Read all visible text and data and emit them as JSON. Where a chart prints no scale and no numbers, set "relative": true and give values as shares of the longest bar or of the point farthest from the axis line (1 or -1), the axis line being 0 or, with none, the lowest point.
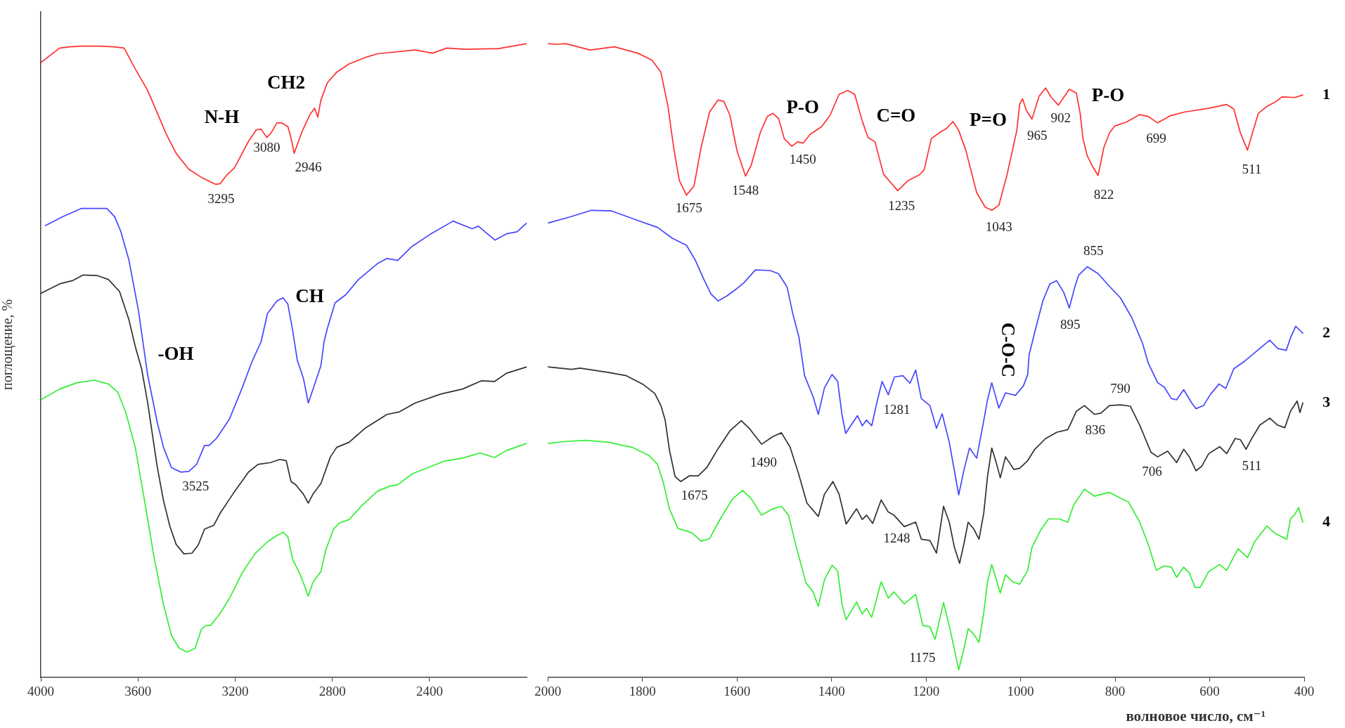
{
  "chart_data": [
    {
      "type": "line",
      "relative": true,
      "ylabel": "поглощение, %",
      "xlim": [
        4000,
        2000
      ],
      "xticks": [
        4000,
        3600,
        3200,
        2800,
        2400
      ],
      "grid": false,
      "legend": false,
      "marker": "none",
      "line_style": "solid",
      "series": [
        {
          "color": "#ff3030",
          "x": [
            4000,
            3922,
            3880,
            3832,
            3760,
            3700,
            3657,
            3611,
            3560,
            3521,
            3482,
            3443,
            3391,
            3339,
            3281,
            3262,
            3236,
            3203,
            3171,
            3145,
            3113,
            3093,
            3070,
            3054,
            3028,
            3009,
            2983,
            2970,
            2957,
            2944,
            2925,
            2892,
            2873,
            2860,
            2847,
            2821,
            2782,
            2731,
            2666,
            2614,
            2459,
            2387,
            2329,
            2253,
            2148,
            2119,
            2046,
            2000
          ],
          "values": [
            0.97,
            0.993,
            0.995,
            0.996,
            0.996,
            0.995,
            0.993,
            0.96,
            0.926,
            0.891,
            0.856,
            0.827,
            0.802,
            0.789,
            0.778,
            0.779,
            0.792,
            0.804,
            0.827,
            0.846,
            0.864,
            0.865,
            0.852,
            0.858,
            0.875,
            0.875,
            0.869,
            0.851,
            0.827,
            0.841,
            0.861,
            0.888,
            0.898,
            0.884,
            0.911,
            0.938,
            0.955,
            0.968,
            0.978,
            0.984,
            0.99,
            0.985,
            0.993,
            0.991,
            0.992,
            0.992,
            0.997,
            1.0
          ]
        },
        {
          "color": "#4646ff",
          "x": [
            3981,
            3909,
            3832,
            3728,
            3696,
            3670,
            3637,
            3598,
            3560,
            3521,
            3495,
            3462,
            3424,
            3391,
            3359,
            3326,
            3307,
            3275,
            3223,
            3171,
            3132,
            3093,
            3067,
            3028,
            3003,
            2983,
            2964,
            2944,
            2919,
            2899,
            2873,
            2847,
            2834,
            2821,
            2789,
            2744,
            2692,
            2614,
            2575,
            2531,
            2472,
            2394,
            2303,
            2225,
            2199,
            2131,
            2083,
            2040,
            2000
          ],
          "values": [
            0.713,
            0.727,
            0.74,
            0.74,
            0.727,
            0.703,
            0.658,
            0.579,
            0.477,
            0.403,
            0.363,
            0.331,
            0.324,
            0.325,
            0.336,
            0.366,
            0.366,
            0.378,
            0.408,
            0.457,
            0.497,
            0.53,
            0.574,
            0.594,
            0.599,
            0.589,
            0.549,
            0.5,
            0.472,
            0.433,
            0.462,
            0.492,
            0.53,
            0.55,
            0.591,
            0.604,
            0.628,
            0.653,
            0.661,
            0.658,
            0.68,
            0.7,
            0.72,
            0.708,
            0.712,
            0.69,
            0.7,
            0.703,
            0.717
          ]
        },
        {
          "color": "#303030",
          "x": [
            4000,
            3922,
            3870,
            3825,
            3767,
            3722,
            3676,
            3637,
            3611,
            3585,
            3560,
            3521,
            3495,
            3469,
            3443,
            3411,
            3378,
            3352,
            3326,
            3288,
            3262,
            3210,
            3145,
            3106,
            3054,
            3016,
            2990,
            2970,
            2951,
            2919,
            2899,
            2880,
            2847,
            2808,
            2782,
            2731,
            2666,
            2575,
            2524,
            2459,
            2355,
            2264,
            2187,
            2132,
            2083,
            2000
          ],
          "values": [
            0.606,
            0.621,
            0.626,
            0.635,
            0.634,
            0.628,
            0.609,
            0.564,
            0.522,
            0.487,
            0.433,
            0.333,
            0.279,
            0.239,
            0.21,
            0.195,
            0.196,
            0.209,
            0.234,
            0.24,
            0.259,
            0.289,
            0.324,
            0.336,
            0.339,
            0.344,
            0.342,
            0.309,
            0.304,
            0.289,
            0.275,
            0.289,
            0.306,
            0.348,
            0.363,
            0.371,
            0.393,
            0.415,
            0.419,
            0.433,
            0.447,
            0.455,
            0.468,
            0.467,
            0.48,
            0.49
          ]
        },
        {
          "color": "#33ee33",
          "x": [
            4000,
            3922,
            3851,
            3780,
            3722,
            3683,
            3650,
            3611,
            3573,
            3534,
            3495,
            3462,
            3430,
            3398,
            3365,
            3339,
            3320,
            3301,
            3262,
            3223,
            3171,
            3119,
            3067,
            3028,
            3003,
            2983,
            2964,
            2932,
            2915,
            2899,
            2880,
            2847,
            2828,
            2795,
            2769,
            2731,
            2679,
            2614,
            2562,
            2531,
            2472,
            2407,
            2342,
            2264,
            2192,
            2132,
            2083,
            2010,
            2000
          ],
          "values": [
            0.438,
            0.455,
            0.465,
            0.469,
            0.463,
            0.45,
            0.418,
            0.363,
            0.279,
            0.19,
            0.115,
            0.066,
            0.046,
            0.04,
            0.046,
            0.076,
            0.082,
            0.082,
            0.101,
            0.125,
            0.165,
            0.195,
            0.214,
            0.224,
            0.229,
            0.222,
            0.187,
            0.162,
            0.145,
            0.128,
            0.15,
            0.167,
            0.2,
            0.234,
            0.244,
            0.249,
            0.271,
            0.294,
            0.302,
            0.304,
            0.321,
            0.331,
            0.341,
            0.346,
            0.354,
            0.347,
            0.358,
            0.368,
            0.369
          ]
        }
      ],
      "annotations": [
        {
          "text": "N-H",
          "x": 3145,
          "y": 0.846
        },
        {
          "text": "CH2",
          "x": 2990,
          "y": 0.871
        },
        {
          "text": "3295",
          "x": 3258,
          "y": 0.781
        },
        {
          "text": "3080",
          "x": 3070,
          "y": 0.852
        },
        {
          "text": "2946",
          "x": 2957,
          "y": 0.827
        },
        {
          "text": "-OH",
          "x": 3560,
          "y": 0.477
        },
        {
          "text": "CH",
          "x": 3003,
          "y": 0.599
        },
        {
          "text": "3525",
          "x": 3363,
          "y": 0.335
        }
      ]
    },
    {
      "type": "line",
      "relative": true,
      "xlabel": "волновое число, см⁻¹",
      "xlim": [
        2000,
        400
      ],
      "xticks": [
        2000,
        1800,
        1600,
        1400,
        1200,
        1000,
        800,
        600,
        400
      ],
      "grid": false,
      "legend": false,
      "marker": "none",
      "line_style": "solid",
      "series": [
        {
          "name": "1",
          "color": "#ff3030",
          "x": [
            2000,
            1981,
            1962,
            1911,
            1859,
            1810,
            1780,
            1761,
            1746,
            1734,
            1722,
            1707,
            1691,
            1676,
            1658,
            1640,
            1628,
            1615,
            1600,
            1582,
            1570,
            1551,
            1536,
            1524,
            1512,
            1500,
            1484,
            1472,
            1460,
            1445,
            1421,
            1403,
            1384,
            1366,
            1351,
            1335,
            1323,
            1308,
            1290,
            1260,
            1238,
            1214,
            1204,
            1189,
            1169,
            1157,
            1143,
            1131,
            1116,
            1093,
            1075,
            1061,
            1046,
            1029,
            1008,
            1002,
            996,
            988,
            976,
            961,
            947,
            935,
            920,
            897,
            882,
            874,
            868,
            859,
            847,
            836,
            824,
            812,
            801,
            777,
            748,
            730,
            710,
            684,
            654,
            602,
            564,
            549,
            535,
            520,
            508,
            497,
            479,
            461,
            447,
            420,
            403
          ],
          "values": [
            1.0,
            0.999,
            1.0,
            0.99,
            0.995,
            0.985,
            0.974,
            0.955,
            0.901,
            0.836,
            0.784,
            0.761,
            0.775,
            0.836,
            0.892,
            0.911,
            0.909,
            0.887,
            0.831,
            0.791,
            0.808,
            0.859,
            0.885,
            0.89,
            0.882,
            0.85,
            0.838,
            0.845,
            0.843,
            0.857,
            0.869,
            0.887,
            0.92,
            0.926,
            0.92,
            0.878,
            0.852,
            0.845,
            0.794,
            0.768,
            0.784,
            0.793,
            0.801,
            0.85,
            0.861,
            0.866,
            0.877,
            0.863,
            0.832,
            0.765,
            0.742,
            0.737,
            0.745,
            0.792,
            0.863,
            0.904,
            0.913,
            0.895,
            0.881,
            0.917,
            0.93,
            0.915,
            0.903,
            0.928,
            0.922,
            0.89,
            0.85,
            0.823,
            0.805,
            0.792,
            0.836,
            0.859,
            0.87,
            0.876,
            0.888,
            0.885,
            0.875,
            0.886,
            0.892,
            0.898,
            0.904,
            0.897,
            0.859,
            0.832,
            0.863,
            0.89,
            0.901,
            0.908,
            0.916,
            0.915,
            0.919
          ]
        },
        {
          "name": "2",
          "color": "#4646ff",
          "x": [
            2000,
            1956,
            1908,
            1865,
            1810,
            1768,
            1737,
            1707,
            1688,
            1670,
            1655,
            1640,
            1621,
            1603,
            1585,
            1561,
            1530,
            1512,
            1494,
            1482,
            1469,
            1457,
            1439,
            1428,
            1415,
            1399,
            1387,
            1378,
            1370,
            1356,
            1345,
            1335,
            1326,
            1315,
            1304,
            1293,
            1280,
            1267,
            1249,
            1234,
            1222,
            1210,
            1192,
            1178,
            1166,
            1151,
            1140,
            1131,
            1119,
            1108,
            1093,
            1081,
            1070,
            1061,
            1046,
            1032,
            1011,
            994,
            985,
            982,
            970,
            953,
            938,
            924,
            909,
            897,
            885,
            877,
            859,
            836,
            812,
            789,
            765,
            742,
            730,
            710,
            696,
            681,
            670,
            655,
            638,
            629,
            613,
            598,
            580,
            566,
            549,
            526,
            502,
            473,
            456,
            438,
            429,
            418,
            403
          ],
          "values": [
            0.717,
            0.726,
            0.737,
            0.736,
            0.721,
            0.71,
            0.693,
            0.682,
            0.658,
            0.628,
            0.605,
            0.594,
            0.602,
            0.612,
            0.623,
            0.643,
            0.642,
            0.637,
            0.616,
            0.574,
            0.537,
            0.476,
            0.443,
            0.415,
            0.457,
            0.478,
            0.467,
            0.415,
            0.385,
            0.401,
            0.413,
            0.397,
            0.406,
            0.397,
            0.434,
            0.467,
            0.446,
            0.474,
            0.476,
            0.464,
            0.485,
            0.44,
            0.429,
            0.393,
            0.416,
            0.371,
            0.326,
            0.288,
            0.33,
            0.362,
            0.346,
            0.393,
            0.438,
            0.465,
            0.425,
            0.449,
            0.445,
            0.46,
            0.478,
            0.509,
            0.545,
            0.594,
            0.621,
            0.626,
            0.608,
            0.583,
            0.617,
            0.635,
            0.648,
            0.637,
            0.617,
            0.599,
            0.568,
            0.527,
            0.496,
            0.465,
            0.458,
            0.44,
            0.438,
            0.454,
            0.433,
            0.424,
            0.429,
            0.447,
            0.463,
            0.456,
            0.487,
            0.499,
            0.514,
            0.532,
            0.519,
            0.516,
            0.536,
            0.554,
            0.543
          ]
        },
        {
          "name": "3",
          "color": "#303030",
          "x": [
            2000,
            1950,
            1932,
            1871,
            1834,
            1798,
            1774,
            1761,
            1752,
            1743,
            1731,
            1719,
            1701,
            1682,
            1664,
            1640,
            1615,
            1591,
            1573,
            1548,
            1524,
            1506,
            1488,
            1470,
            1452,
            1428,
            1415,
            1397,
            1384,
            1369,
            1347,
            1335,
            1326,
            1313,
            1295,
            1280,
            1268,
            1246,
            1222,
            1210,
            1192,
            1178,
            1163,
            1151,
            1140,
            1129,
            1119,
            1111,
            1099,
            1088,
            1078,
            1070,
            1061,
            1052,
            1043,
            1032,
            1014,
            1002,
            985,
            970,
            947,
            923,
            900,
            882,
            865,
            844,
            830,
            812,
            789,
            768,
            748,
            724,
            710,
            689,
            670,
            655,
            643,
            629,
            617,
            602,
            579,
            564,
            546,
            535,
            523,
            511,
            494,
            473,
            456,
            441,
            429,
            421,
            415,
            409,
            403
          ],
          "values": [
            0.49,
            0.486,
            0.488,
            0.481,
            0.476,
            0.462,
            0.448,
            0.429,
            0.406,
            0.359,
            0.317,
            0.309,
            0.318,
            0.318,
            0.331,
            0.361,
            0.389,
            0.405,
            0.392,
            0.368,
            0.38,
            0.386,
            0.364,
            0.322,
            0.275,
            0.254,
            0.289,
            0.309,
            0.289,
            0.242,
            0.266,
            0.249,
            0.256,
            0.243,
            0.28,
            0.261,
            0.256,
            0.238,
            0.245,
            0.218,
            0.216,
            0.196,
            0.27,
            0.245,
            0.205,
            0.18,
            0.214,
            0.245,
            0.234,
            0.218,
            0.259,
            0.317,
            0.362,
            0.34,
            0.315,
            0.348,
            0.328,
            0.33,
            0.342,
            0.36,
            0.377,
            0.387,
            0.391,
            0.42,
            0.429,
            0.415,
            0.417,
            0.429,
            0.43,
            0.428,
            0.398,
            0.355,
            0.348,
            0.357,
            0.339,
            0.36,
            0.348,
            0.326,
            0.333,
            0.353,
            0.364,
            0.353,
            0.377,
            0.375,
            0.36,
            0.377,
            0.398,
            0.409,
            0.398,
            0.394,
            0.42,
            0.429,
            0.436,
            0.418,
            0.433
          ]
        },
        {
          "name": "4",
          "color": "#33ee33",
          "x": [
            2000,
            1968,
            1920,
            1871,
            1822,
            1786,
            1768,
            1756,
            1743,
            1725,
            1707,
            1695,
            1676,
            1658,
            1634,
            1609,
            1588,
            1570,
            1548,
            1524,
            1506,
            1491,
            1476,
            1454,
            1439,
            1428,
            1415,
            1399,
            1387,
            1378,
            1369,
            1347,
            1335,
            1326,
            1315,
            1295,
            1280,
            1268,
            1246,
            1222,
            1207,
            1192,
            1181,
            1163,
            1149,
            1140,
            1131,
            1119,
            1111,
            1099,
            1088,
            1078,
            1070,
            1061,
            1052,
            1043,
            1032,
            1017,
            1002,
            985,
            976,
            958,
            941,
            918,
            900,
            888,
            865,
            844,
            812,
            789,
            772,
            748,
            730,
            713,
            696,
            681,
            670,
            655,
            643,
            631,
            620,
            602,
            579,
            564,
            540,
            520,
            505,
            479,
            461,
            437,
            429,
            420,
            412,
            403
          ],
          "values": [
            0.369,
            0.372,
            0.374,
            0.371,
            0.363,
            0.35,
            0.336,
            0.308,
            0.266,
            0.235,
            0.231,
            0.228,
            0.215,
            0.219,
            0.252,
            0.282,
            0.295,
            0.282,
            0.256,
            0.266,
            0.27,
            0.256,
            0.21,
            0.149,
            0.135,
            0.112,
            0.154,
            0.177,
            0.168,
            0.116,
            0.091,
            0.119,
            0.1,
            0.109,
            0.095,
            0.151,
            0.125,
            0.135,
            0.116,
            0.131,
            0.082,
            0.08,
            0.06,
            0.118,
            0.075,
            0.044,
            0.012,
            0.048,
            0.077,
            0.068,
            0.055,
            0.102,
            0.151,
            0.178,
            0.156,
            0.133,
            0.162,
            0.151,
            0.147,
            0.169,
            0.205,
            0.232,
            0.25,
            0.25,
            0.245,
            0.272,
            0.297,
            0.286,
            0.292,
            0.283,
            0.277,
            0.245,
            0.21,
            0.169,
            0.176,
            0.174,
            0.158,
            0.174,
            0.165,
            0.142,
            0.142,
            0.167,
            0.178,
            0.169,
            0.203,
            0.189,
            0.214,
            0.239,
            0.227,
            0.218,
            0.25,
            0.257,
            0.268,
            0.245
          ]
        }
      ],
      "annotations": [
        {
          "text": "1675",
          "x": 1702,
          "y": 0.765
        },
        {
          "text": "1548",
          "x": 1582,
          "y": 0.791
        },
        {
          "text": "P-O",
          "x": 1461,
          "y": 0.843
        },
        {
          "text": "1450",
          "x": 1461,
          "y": 0.843
        },
        {
          "text": "C=O",
          "x": 1335,
          "y": 0.878
        },
        {
          "text": "1235",
          "x": 1252,
          "y": 0.774
        },
        {
          "text": "P=O",
          "x": 1131,
          "y": 0.863
        },
        {
          "text": "1043",
          "x": 1046,
          "y": 0.745
        },
        {
          "text": "965",
          "x": 965,
          "y": 0.907
        },
        {
          "text": "902",
          "x": 915,
          "y": 0.908
        },
        {
          "text": "P-O",
          "x": 815,
          "y": 0.853
        },
        {
          "text": "822",
          "x": 824,
          "y": 0.836
        },
        {
          "text": "699",
          "x": 713,
          "y": 0.877
        },
        {
          "text": "511",
          "x": 511,
          "y": 0.855
        },
        {
          "text": "855",
          "x": 846,
          "y": 0.642
        },
        {
          "text": "895",
          "x": 895,
          "y": 0.589
        },
        {
          "text": "C-O-C",
          "x": 1029,
          "y": 0.448
        },
        {
          "text": "1281",
          "x": 1262,
          "y": 0.475
        },
        {
          "text": "1490",
          "x": 1544,
          "y": 0.37
        },
        {
          "text": "1675",
          "x": 1690,
          "y": 0.318
        },
        {
          "text": "1248",
          "x": 1262,
          "y": 0.251
        },
        {
          "text": "790",
          "x": 789,
          "y": 0.43
        },
        {
          "text": "836",
          "x": 842,
          "y": 0.415
        },
        {
          "text": "706",
          "x": 722,
          "y": 0.354
        },
        {
          "text": "511",
          "x": 511,
          "y": 0.377
        },
        {
          "text": "1175",
          "x": 1208,
          "y": 0.085
        }
      ]
    }
  ]
}
